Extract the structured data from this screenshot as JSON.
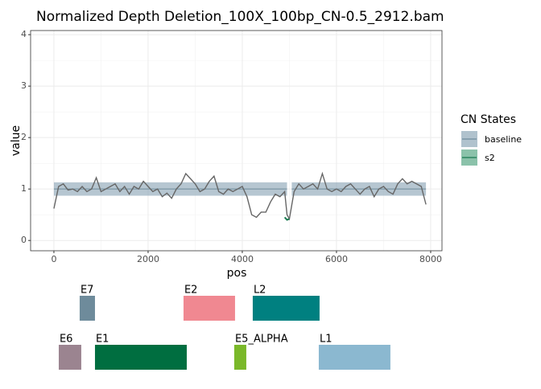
{
  "chart_data": {
    "type": "line",
    "title": "Normalized Depth Deletion_100X_100bp_CN-0.5_2912.bam",
    "xlabel": "pos",
    "ylabel": "value",
    "xlim": [
      -495,
      8240
    ],
    "xticks": [
      0,
      2000,
      4000,
      6000,
      8000
    ],
    "ylim": [
      -0.2,
      4.08
    ],
    "yticks": [
      0,
      1,
      2,
      3,
      4
    ],
    "grid": true,
    "legend_title": "CN States",
    "depth": {
      "color": "#666666",
      "x": [
        0,
        100,
        200,
        300,
        400,
        500,
        600,
        700,
        800,
        900,
        1000,
        1100,
        1200,
        1300,
        1400,
        1500,
        1600,
        1700,
        1800,
        1900,
        2000,
        2100,
        2200,
        2300,
        2400,
        2500,
        2600,
        2700,
        2800,
        2900,
        3000,
        3100,
        3200,
        3300,
        3400,
        3500,
        3600,
        3700,
        3800,
        3900,
        4000,
        4100,
        4200,
        4300,
        4400,
        4500,
        4600,
        4700,
        4800,
        4900,
        4950,
        5000,
        5100,
        5200,
        5300,
        5400,
        5500,
        5600,
        5700,
        5800,
        5900,
        6000,
        6100,
        6200,
        6300,
        6400,
        6500,
        6600,
        6700,
        6800,
        6900,
        7000,
        7100,
        7200,
        7300,
        7400,
        7500,
        7600,
        7700,
        7800,
        7900
      ],
      "values": [
        0.62,
        1.05,
        1.1,
        0.98,
        1.0,
        0.95,
        1.05,
        0.95,
        1.0,
        1.22,
        0.95,
        1.0,
        1.05,
        1.1,
        0.95,
        1.05,
        0.9,
        1.05,
        1.0,
        1.15,
        1.05,
        0.95,
        1.0,
        0.85,
        0.92,
        0.82,
        1.0,
        1.1,
        1.3,
        1.2,
        1.1,
        0.95,
        1.0,
        1.15,
        1.25,
        0.95,
        0.9,
        1.0,
        0.95,
        1.0,
        1.05,
        0.85,
        0.5,
        0.45,
        0.55,
        0.55,
        0.75,
        0.9,
        0.85,
        0.95,
        0.5,
        0.42,
        0.95,
        1.1,
        1.0,
        1.05,
        1.1,
        1.0,
        1.3,
        1.0,
        0.95,
        1.0,
        0.95,
        1.05,
        1.1,
        1.0,
        0.9,
        1.0,
        1.05,
        0.85,
        1.0,
        1.05,
        0.95,
        0.9,
        1.1,
        1.2,
        1.1,
        1.15,
        1.1,
        1.05,
        0.7
      ]
    },
    "series": [
      {
        "name": "baseline",
        "color": "#8fa8b8",
        "line_color": "#6e8b9b",
        "segments": [
          {
            "start": 0,
            "end": 4950,
            "value": 1,
            "lower": 0.87,
            "upper": 1.13
          },
          {
            "start": 5050,
            "end": 7900,
            "value": 1,
            "lower": 0.87,
            "upper": 1.13
          }
        ]
      },
      {
        "name": "s2",
        "color": "#5aa886",
        "line_color": "#1a7a50",
        "x": [
          4900,
          4950,
          5000
        ],
        "values": [
          0.45,
          0.4,
          0.42
        ]
      }
    ],
    "genes": [
      {
        "name": "E7",
        "start": 547,
        "end": 872,
        "row": 0,
        "color": "#6e8b9b"
      },
      {
        "name": "E2",
        "start": 2752,
        "end": 3846,
        "row": 0,
        "color": "#f08891"
      },
      {
        "name": "L2",
        "start": 4222,
        "end": 5641,
        "row": 0,
        "color": "#008080"
      },
      {
        "name": "E6",
        "start": 103,
        "end": 581,
        "row": 1,
        "color": "#9b8490"
      },
      {
        "name": "E1",
        "start": 872,
        "end": 2821,
        "row": 1,
        "color": "#006e40"
      },
      {
        "name": "E5_ALPHA",
        "start": 3829,
        "end": 4085,
        "row": 1,
        "color": "#7ab829"
      },
      {
        "name": "L1",
        "start": 5624,
        "end": 7145,
        "row": 1,
        "color": "#8bb8d0"
      }
    ]
  }
}
